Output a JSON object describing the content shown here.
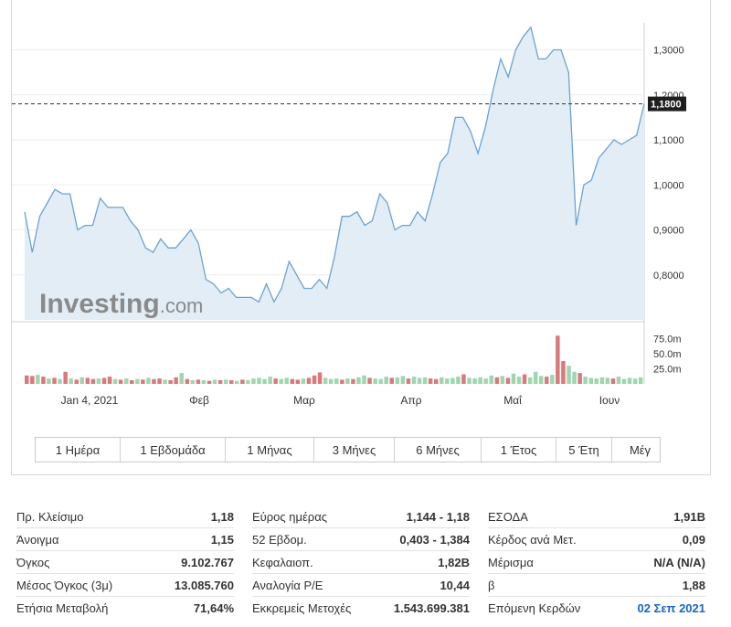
{
  "chart_data": {
    "type": "area",
    "title": "",
    "xlabel": "",
    "ylabel": "",
    "x_ticks": [
      "Jan 4, 2021",
      "Φεβ",
      "Μαρ",
      "Απρ",
      "Μαΐ",
      "Ιουν"
    ],
    "y_ticks": [
      "0,8000",
      "0,9000",
      "1,0000",
      "1,1000",
      "1,2000",
      "1,3000"
    ],
    "ylim": [
      0.7,
      1.36
    ],
    "last_price": 1.18,
    "last_price_label": "1,1800",
    "price_series": [
      0.94,
      0.85,
      0.93,
      0.96,
      0.99,
      0.98,
      0.98,
      0.9,
      0.91,
      0.91,
      0.97,
      0.95,
      0.95,
      0.95,
      0.92,
      0.9,
      0.86,
      0.85,
      0.88,
      0.86,
      0.86,
      0.88,
      0.9,
      0.87,
      0.79,
      0.78,
      0.76,
      0.77,
      0.75,
      0.75,
      0.75,
      0.74,
      0.78,
      0.74,
      0.77,
      0.83,
      0.8,
      0.77,
      0.77,
      0.79,
      0.77,
      0.84,
      0.93,
      0.93,
      0.94,
      0.91,
      0.92,
      0.98,
      0.96,
      0.9,
      0.91,
      0.91,
      0.94,
      0.92,
      0.98,
      1.05,
      1.07,
      1.15,
      1.15,
      1.12,
      1.07,
      1.13,
      1.21,
      1.28,
      1.24,
      1.3,
      1.33,
      1.35,
      1.28,
      1.28,
      1.3,
      1.3,
      1.25,
      0.91,
      1.0,
      1.01,
      1.06,
      1.08,
      1.1,
      1.09,
      1.1,
      1.11,
      1.18
    ],
    "volume_ticks": [
      "25.0m",
      "50.0m",
      "75.0m"
    ],
    "volume_series": [
      {
        "v": 14,
        "up": false
      },
      {
        "v": 13,
        "up": false
      },
      {
        "v": 15,
        "up": true
      },
      {
        "v": 12,
        "up": false
      },
      {
        "v": 9,
        "up": true
      },
      {
        "v": 10,
        "up": false
      },
      {
        "v": 8,
        "up": true
      },
      {
        "v": 20,
        "up": false
      },
      {
        "v": 9,
        "up": true
      },
      {
        "v": 7,
        "up": false
      },
      {
        "v": 11,
        "up": true
      },
      {
        "v": 10,
        "up": false
      },
      {
        "v": 8,
        "up": false
      },
      {
        "v": 9,
        "up": true
      },
      {
        "v": 10,
        "up": false
      },
      {
        "v": 12,
        "up": false
      },
      {
        "v": 8,
        "up": true
      },
      {
        "v": 7,
        "up": false
      },
      {
        "v": 9,
        "up": true
      },
      {
        "v": 6,
        "up": false
      },
      {
        "v": 8,
        "up": true
      },
      {
        "v": 7,
        "up": false
      },
      {
        "v": 10,
        "up": true
      },
      {
        "v": 8,
        "up": false
      },
      {
        "v": 9,
        "up": false
      },
      {
        "v": 7,
        "up": true
      },
      {
        "v": 6,
        "up": false
      },
      {
        "v": 11,
        "up": false
      },
      {
        "v": 18,
        "up": true
      },
      {
        "v": 8,
        "up": false
      },
      {
        "v": 6,
        "up": true
      },
      {
        "v": 7,
        "up": false
      },
      {
        "v": 6,
        "up": true
      },
      {
        "v": 5,
        "up": false
      },
      {
        "v": 7,
        "up": true
      },
      {
        "v": 6,
        "up": false
      },
      {
        "v": 7,
        "up": true
      },
      {
        "v": 6,
        "up": false
      },
      {
        "v": 5,
        "up": true
      },
      {
        "v": 7,
        "up": false
      },
      {
        "v": 6,
        "up": true
      },
      {
        "v": 9,
        "up": true
      },
      {
        "v": 10,
        "up": true
      },
      {
        "v": 8,
        "up": true
      },
      {
        "v": 12,
        "up": true
      },
      {
        "v": 9,
        "up": false
      },
      {
        "v": 8,
        "up": true
      },
      {
        "v": 10,
        "up": true
      },
      {
        "v": 8,
        "up": false
      },
      {
        "v": 7,
        "up": false
      },
      {
        "v": 9,
        "up": true
      },
      {
        "v": 10,
        "up": false
      },
      {
        "v": 14,
        "up": false
      },
      {
        "v": 19,
        "up": false
      },
      {
        "v": 10,
        "up": true
      },
      {
        "v": 8,
        "up": true
      },
      {
        "v": 9,
        "up": true
      },
      {
        "v": 7,
        "up": false
      },
      {
        "v": 9,
        "up": true
      },
      {
        "v": 8,
        "up": false
      },
      {
        "v": 11,
        "up": true
      },
      {
        "v": 14,
        "up": true
      },
      {
        "v": 10,
        "up": false
      },
      {
        "v": 9,
        "up": true
      },
      {
        "v": 8,
        "up": true
      },
      {
        "v": 12,
        "up": true
      },
      {
        "v": 10,
        "up": false
      },
      {
        "v": 11,
        "up": true
      },
      {
        "v": 13,
        "up": true
      },
      {
        "v": 9,
        "up": false
      },
      {
        "v": 12,
        "up": true
      },
      {
        "v": 10,
        "up": true
      },
      {
        "v": 11,
        "up": true
      },
      {
        "v": 9,
        "up": false
      },
      {
        "v": 8,
        "up": false
      },
      {
        "v": 11,
        "up": true
      },
      {
        "v": 9,
        "up": true
      },
      {
        "v": 10,
        "up": true
      },
      {
        "v": 12,
        "up": true
      },
      {
        "v": 16,
        "up": false
      },
      {
        "v": 10,
        "up": true
      },
      {
        "v": 9,
        "up": true
      },
      {
        "v": 11,
        "up": true
      },
      {
        "v": 9,
        "up": true
      },
      {
        "v": 14,
        "up": true
      },
      {
        "v": 11,
        "up": false
      },
      {
        "v": 13,
        "up": true
      },
      {
        "v": 10,
        "up": false
      },
      {
        "v": 17,
        "up": true
      },
      {
        "v": 12,
        "up": true
      },
      {
        "v": 16,
        "up": false
      },
      {
        "v": 11,
        "up": true
      },
      {
        "v": 20,
        "up": true
      },
      {
        "v": 13,
        "up": true
      },
      {
        "v": 12,
        "up": false
      },
      {
        "v": 15,
        "up": true
      },
      {
        "v": 80,
        "up": false
      },
      {
        "v": 38,
        "up": false
      },
      {
        "v": 30,
        "up": true
      },
      {
        "v": 20,
        "up": true
      },
      {
        "v": 18,
        "up": false
      },
      {
        "v": 12,
        "up": true
      },
      {
        "v": 10,
        "up": true
      },
      {
        "v": 9,
        "up": true
      },
      {
        "v": 11,
        "up": true
      },
      {
        "v": 10,
        "up": true
      },
      {
        "v": 9,
        "up": false
      },
      {
        "v": 12,
        "up": true
      },
      {
        "v": 8,
        "up": true
      },
      {
        "v": 10,
        "up": true
      },
      {
        "v": 9,
        "up": true
      },
      {
        "v": 11,
        "up": true
      }
    ],
    "volume_max": 88,
    "colors": {
      "line": "#6aa3cf",
      "area": "#e3edf6",
      "grid": "#eeeeee",
      "vol_up": "#9fd6b0",
      "vol_down": "#d9797c",
      "label_bg": "#1e1e1e"
    }
  },
  "watermark": "Investing.com",
  "periods": [
    "1 Ημέρα",
    "1 Εβδομάδα",
    "1 Μήνας",
    "3 Μήνες",
    "6 Μήνες",
    "1 Έτος",
    "5 Έτη",
    "Μέγ"
  ],
  "stats": [
    [
      {
        "label": "Πρ. Κλείσιμο",
        "value": "1,18"
      },
      {
        "label": "Άνοιγμα",
        "value": "1,15"
      },
      {
        "label": "Όγκος",
        "value": "9.102.767"
      },
      {
        "label": "Μέσος Όγκος (3μ)",
        "value": "13.085.760"
      },
      {
        "label": "Ετήσια Μεταβολή",
        "value": "71,64%"
      }
    ],
    [
      {
        "label": "Εύρος ημέρας",
        "value": "1,144 - 1,18"
      },
      {
        "label": "52 Εβδομ.",
        "value": "0,403 - 1,384"
      },
      {
        "label": "Κεφαλαιοπ.",
        "value": "1,82B"
      },
      {
        "label": "Αναλογία P/E",
        "value": "10,44"
      },
      {
        "label": "Εκκρεμείς Μετοχές",
        "value": "1.543.699.381"
      }
    ],
    [
      {
        "label": "ΕΣΟΔΑ",
        "value": "1,91B"
      },
      {
        "label": "Κέρδος ανά Μετ.",
        "value": "0,09"
      },
      {
        "label": "Μέρισμα",
        "value": "N/A (N/A)"
      },
      {
        "label": "β",
        "value": "1,88"
      },
      {
        "label": "Επόμενη Κερδών",
        "value": "02 Σεπ 2021"
      }
    ]
  ]
}
